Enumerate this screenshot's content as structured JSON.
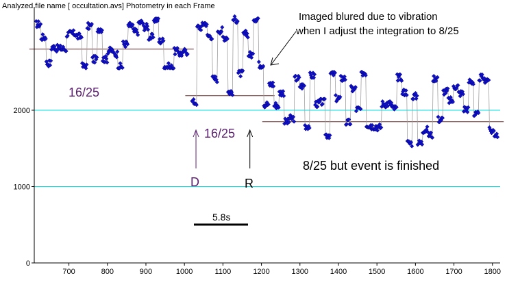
{
  "header": {
    "title": "Analyzed file name [ occultation.avs]   Photometry in each Frame"
  },
  "annotations": {
    "vibration_line1": "Imaged blured due to vibration",
    "vibration_line2": "when I adjust the integration to 8/25",
    "label_16_25_left": "16/25",
    "label_16_25_mid": "16/25",
    "label_8_25": "8/25 but event is finished",
    "label_D": "D",
    "label_R": "R",
    "scale_bar": "5.8s"
  },
  "colors": {
    "points": "#1010c8",
    "point_outline": "#000080",
    "connect_line": "#a0a0a0",
    "mean_line": "#6b2a2a",
    "grid_line": "#00e0e0",
    "annotation_purple": "#5a1e6e",
    "axis": "#000000"
  },
  "chart_data": {
    "type": "scatter",
    "title": "",
    "xlabel": "",
    "ylabel": "",
    "xlim": [
      610,
      1820
    ],
    "ylim": [
      0,
      3300
    ],
    "x_ticks": [
      700,
      800,
      900,
      1000,
      1100,
      1200,
      1300,
      1400,
      1500,
      1600,
      1700,
      1800
    ],
    "y_ticks": [
      0,
      1000,
      2000
    ],
    "y_gridlines": [
      1000,
      2000
    ],
    "segments": [
      {
        "name": "16/25",
        "x_start": 615,
        "x_end": 1010,
        "mean": 2800,
        "value_min": 2550,
        "value_max": 3200
      },
      {
        "name": "16/25",
        "x_start": 1020,
        "x_end": 1220,
        "mean": 2190,
        "value_min": 2000,
        "value_max": 3250
      },
      {
        "name": "8/25",
        "x_start": 1220,
        "x_end": 1815,
        "mean": 1850,
        "value_min": 1500,
        "value_max": 2500
      }
    ],
    "markers": [
      {
        "label": "D",
        "x": 1030
      },
      {
        "label": "R",
        "x": 1170
      }
    ]
  }
}
